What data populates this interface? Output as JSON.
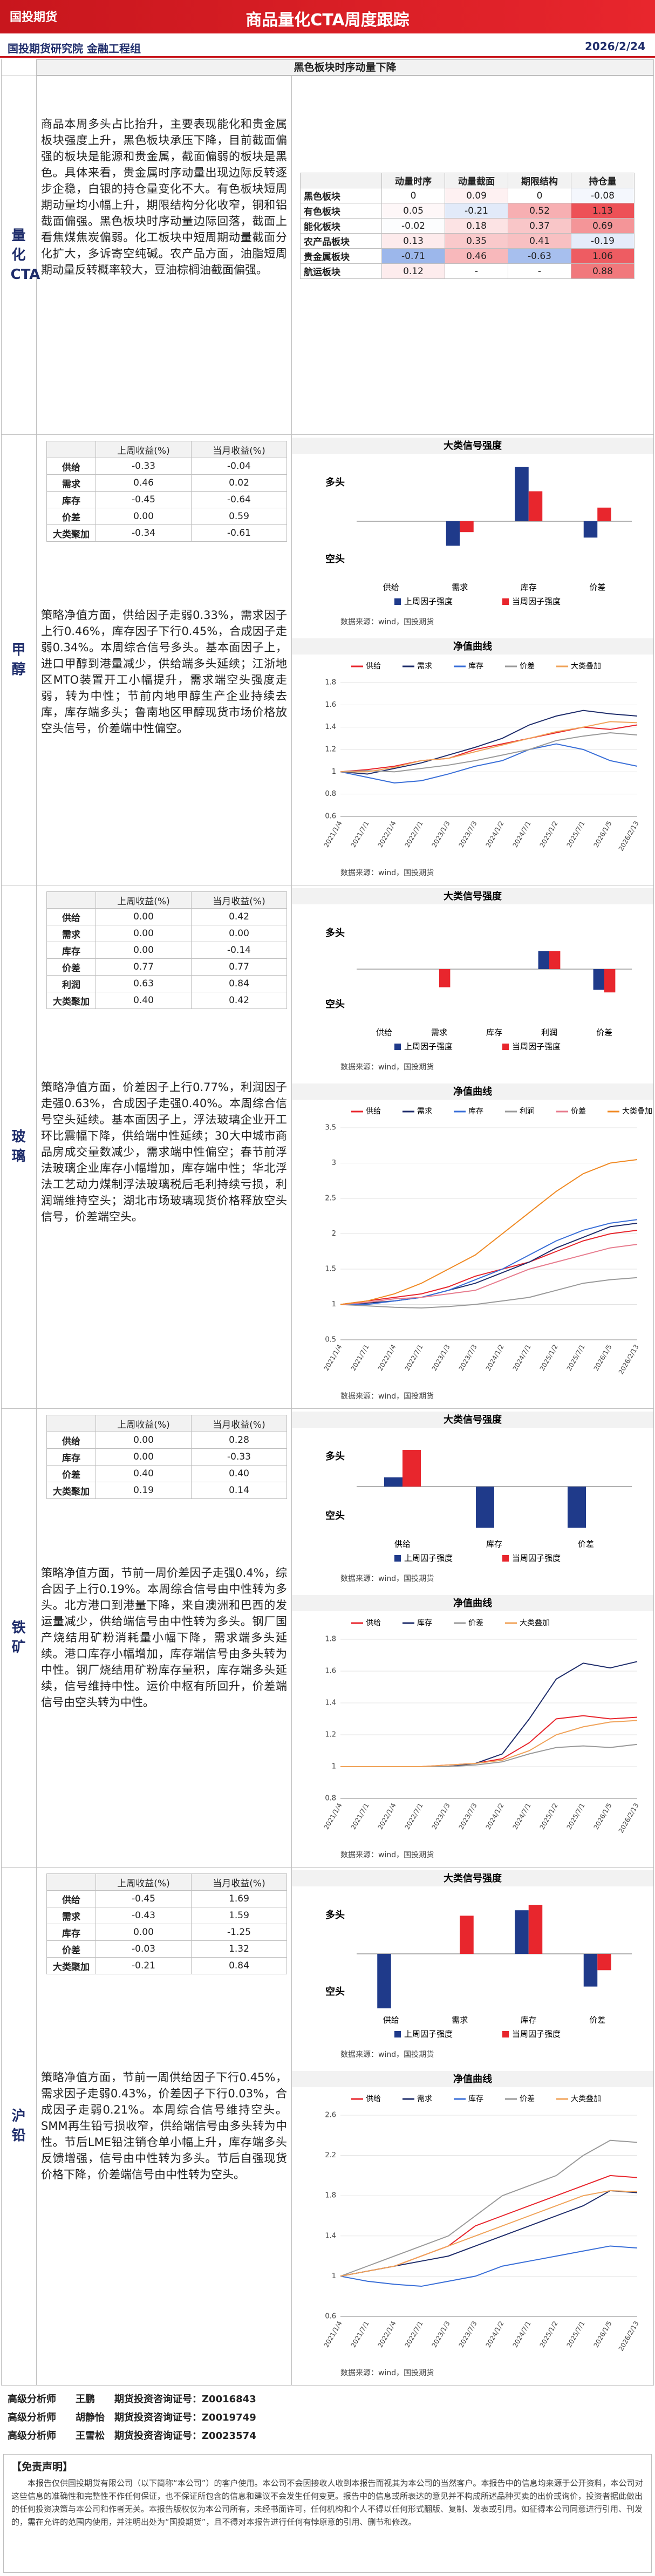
{
  "header": {
    "logo": "国投期货",
    "title": "商品量化CTA周度跟踪",
    "department": "国投期货研究院 金融工程组",
    "date": "2026/2/24"
  },
  "banner": "黑色板块时序动量下降",
  "overview": {
    "name": "量化CTA",
    "text": "商品本周多头占比抬升，主要表现能化和贵金属板块强度上升，黑色板块承压下降，目前截面偏强的板块是能源和贵金属，截面偏弱的板块是黑色。具体来看，贵金属时序动量出现边际反转逐步企稳，白银的持仓量变化不大。有色板块短周期动量均小幅上升，期限结构分化收窄，铜和铝截面偏强。黑色板块时序动量边际回落，截面上看焦煤焦炭偏弱。化工板块中短周期动量截面分化扩大，多诉寄空纯碱。农产品方面，油脂短周期动量反转概率较大，豆油棕榈油截面偏强。",
    "table": {
      "columns": [
        "动量时序",
        "动量截面",
        "期限结构",
        "持仓量"
      ],
      "rows": [
        {
          "label": "黑色板块",
          "values": [
            0,
            0.09,
            0,
            -0.08
          ]
        },
        {
          "label": "有色板块",
          "values": [
            0.05,
            -0.21,
            0.52,
            1.13
          ]
        },
        {
          "label": "能化板块",
          "values": [
            -0.02,
            0.18,
            0.37,
            0.69
          ]
        },
        {
          "label": "农产品板块",
          "values": [
            0.13,
            0.35,
            0.41,
            -0.19
          ]
        },
        {
          "label": "贵金属板块",
          "values": [
            -0.71,
            0.46,
            -0.63,
            1.06
          ]
        },
        {
          "label": "航运板块",
          "values": [
            0.12,
            "-",
            "-",
            0.88
          ]
        }
      ]
    }
  },
  "sections": [
    {
      "name": "甲醇",
      "table": {
        "columns": [
          "上周收益(%)",
          "当月收益(%)"
        ],
        "rows": [
          {
            "label": "供给",
            "values": [
              "-0.33",
              "-0.04"
            ]
          },
          {
            "label": "需求",
            "values": [
              "0.46",
              "0.02"
            ]
          },
          {
            "label": "库存",
            "values": [
              "-0.45",
              "-0.64"
            ]
          },
          {
            "label": "价差",
            "values": [
              "0.00",
              "0.59"
            ]
          },
          {
            "label": "大类聚加",
            "values": [
              "-0.34",
              "-0.61"
            ]
          }
        ]
      },
      "text": "策略净值方面，供给因子走弱0.33%，需求因子上行0.46%，库存因子下行0.45%，合成因子走弱0.34%。本周综合信号多头。基本面因子上，进口甲醇到港量减少，供给端多头延续；江浙地区MTO装置开工小幅提升，需求端空头强度走弱，转为中性；节前内地甲醇生产企业持续去库，库存端多头；鲁南地区甲醇现货市场价格放空头信号，价差端中性偏空。",
      "signal_chart": {
        "type": "bar",
        "title": "大类信号强度",
        "long_label": "多头",
        "short_label": "空头",
        "ylim": [
          -1,
          1
        ],
        "categories": [
          "供给",
          "需求",
          "库存",
          "价差"
        ],
        "series": [
          {
            "name": "上周因子强度",
            "color": "#1f3a8a",
            "values": [
              0,
              -0.45,
              1,
              -0.3
            ]
          },
          {
            "name": "当周因子强度",
            "color": "#e8262d",
            "values": [
              0,
              -0.2,
              0.55,
              0.25
            ]
          }
        ],
        "source": "数据来源：wind，国投期货"
      },
      "nav_chart": {
        "type": "line",
        "title": "净值曲线",
        "x": [
          "2021/1/4",
          "2021/7/1",
          "2022/1/4",
          "2022/7/1",
          "2023/1/3",
          "2023/7/3",
          "2024/1/2",
          "2024/7/1",
          "2025/1/2",
          "2025/7/1",
          "2026/1/5",
          "2026/2/13"
        ],
        "ylim": [
          0.6,
          1.8
        ],
        "yticks": [
          0.6,
          0.8,
          1,
          1.2,
          1.4,
          1.6,
          1.8
        ],
        "series": [
          {
            "name": "供给",
            "color": "#e8262d",
            "values": [
              1,
              1.02,
              1.05,
              1.1,
              1.12,
              1.2,
              1.25,
              1.3,
              1.35,
              1.4,
              1.38,
              1.42
            ]
          },
          {
            "name": "需求",
            "color": "#1f2d6b",
            "values": [
              1,
              0.98,
              1.03,
              1.08,
              1.15,
              1.22,
              1.3,
              1.42,
              1.5,
              1.55,
              1.52,
              1.5
            ]
          },
          {
            "name": "库存",
            "color": "#3a6fd8",
            "values": [
              1,
              0.95,
              0.9,
              0.92,
              0.98,
              1.05,
              1.1,
              1.2,
              1.25,
              1.2,
              1.1,
              1.05
            ]
          },
          {
            "name": "价差",
            "color": "#9a9a9a",
            "values": [
              1,
              1.01,
              1,
              1.03,
              1.06,
              1.1,
              1.15,
              1.2,
              1.28,
              1.32,
              1.35,
              1.33
            ]
          },
          {
            "name": "大类叠加",
            "color": "#f0a35a",
            "values": [
              1,
              1,
              1.04,
              1.1,
              1.12,
              1.18,
              1.24,
              1.3,
              1.36,
              1.4,
              1.45,
              1.44
            ]
          }
        ],
        "source": "数据来源：wind，国投期货"
      }
    },
    {
      "name": "玻璃",
      "table": {
        "columns": [
          "上周收益(%)",
          "当月收益(%)"
        ],
        "rows": [
          {
            "label": "供给",
            "values": [
              "0.00",
              "0.42"
            ]
          },
          {
            "label": "需求",
            "values": [
              "0.00",
              "0.00"
            ]
          },
          {
            "label": "库存",
            "values": [
              "0.00",
              "-0.14"
            ]
          },
          {
            "label": "价差",
            "values": [
              "0.77",
              "0.77"
            ]
          },
          {
            "label": "利润",
            "values": [
              "0.63",
              "0.84"
            ]
          },
          {
            "label": "大类聚加",
            "values": [
              "0.40",
              "0.42"
            ]
          }
        ]
      },
      "text": "策略净值方面，价差因子上行0.77%，利润因子走强0.63%，合成因子走强0.40%。本周综合信号空头延续。基本面因子上，浮法玻璃企业开工环比震幅下降，供给端中性延续；30大中城市商品房成交量数减少，需求端中性偏空；春节前浮法玻璃企业库存小幅增加，库存端中性；华北浮法工艺动力煤制浮法玻璃税后毛利持续亏损，利润端维持空头；湖北市场玻璃现货价格释放空头信号，价差端空头。",
      "signal_chart": {
        "type": "bar",
        "title": "大类信号强度",
        "long_label": "多头",
        "short_label": "空头",
        "ylim": [
          -1,
          1
        ],
        "categories": [
          "供给",
          "需求",
          "库存",
          "利润",
          "价差"
        ],
        "series": [
          {
            "name": "上周因子强度",
            "color": "#1f3a8a",
            "values": [
              0,
              0,
              0,
              0.35,
              -0.4
            ]
          },
          {
            "name": "当周因子强度",
            "color": "#e8262d",
            "values": [
              0,
              -0.35,
              0,
              0.35,
              -0.45
            ]
          }
        ],
        "source": "数据来源：wind，国投期货"
      },
      "nav_chart": {
        "type": "line",
        "title": "净值曲线",
        "x": [
          "2021/1/4",
          "2021/7/1",
          "2022/1/4",
          "2022/7/1",
          "2023/1/3",
          "2023/7/3",
          "2024/1/2",
          "2024/7/1",
          "2025/1/2",
          "2025/7/1",
          "2026/1/5",
          "2026/2/13"
        ],
        "ylim": [
          0.5,
          3.5
        ],
        "yticks": [
          0.5,
          1,
          1.5,
          2,
          2.5,
          3,
          3.5
        ],
        "series": [
          {
            "name": "供给",
            "color": "#e8262d",
            "values": [
              1,
              1.05,
              1.1,
              1.15,
              1.25,
              1.4,
              1.5,
              1.6,
              1.75,
              1.9,
              2,
              2.05
            ]
          },
          {
            "name": "需求",
            "color": "#1f2d6b",
            "values": [
              1,
              1.02,
              1.05,
              1.1,
              1.2,
              1.3,
              1.45,
              1.6,
              1.8,
              1.95,
              2.1,
              2.15
            ]
          },
          {
            "name": "库存",
            "color": "#3a6fd8",
            "values": [
              1,
              1,
              1.05,
              1.1,
              1.2,
              1.35,
              1.5,
              1.7,
              1.9,
              2.05,
              2.15,
              2.2
            ]
          },
          {
            "name": "利润",
            "color": "#9a9a9a",
            "values": [
              1,
              0.98,
              0.96,
              0.95,
              0.97,
              1,
              1.05,
              1.1,
              1.2,
              1.3,
              1.35,
              1.38
            ]
          },
          {
            "name": "价差",
            "color": "#e77c8e",
            "values": [
              1,
              1.03,
              1.08,
              1.1,
              1.15,
              1.2,
              1.35,
              1.5,
              1.6,
              1.7,
              1.8,
              1.85
            ]
          },
          {
            "name": "大类叠加",
            "color": "#f08a24",
            "values": [
              1,
              1.05,
              1.15,
              1.3,
              1.5,
              1.7,
              2,
              2.3,
              2.6,
              2.85,
              3,
              3.05
            ]
          }
        ],
        "source": "数据来源：wind，国投期货"
      }
    },
    {
      "name": "铁矿",
      "table": {
        "columns": [
          "上周收益(%)",
          "当月收益(%)"
        ],
        "rows": [
          {
            "label": "供给",
            "values": [
              "0.00",
              "0.28"
            ]
          },
          {
            "label": "库存",
            "values": [
              "0.00",
              "-0.33"
            ]
          },
          {
            "label": "价差",
            "values": [
              "0.40",
              "0.40"
            ]
          },
          {
            "label": "大类聚加",
            "values": [
              "0.19",
              "0.14"
            ]
          }
        ]
      },
      "text": "策略净值方面，节前一周价差因子走强0.4%，综合因子上行0.19%。本周综合信号由中性转为多头。北方港口到港量下降，来自澳洲和巴西的发运量减少，供给端信号由中性转为多头。钢厂国产烧结用矿粉消耗量小幅下降，需求端多头延续。港口库存小幅增加，库存端信号由多头转为中性。钢厂烧结用矿粉库存量积，库存端多头延续，信号维持中性。运价中枢有所回升，价差端信号由空头转为中性。",
      "signal_chart": {
        "type": "bar",
        "title": "大类信号强度",
        "long_label": "多头",
        "short_label": "空头",
        "ylim": [
          -1,
          1
        ],
        "categories": [
          "供给",
          "库存",
          "价差"
        ],
        "series": [
          {
            "name": "上周因子强度",
            "color": "#1f3a8a",
            "values": [
              0.2,
              -0.9,
              -0.9
            ]
          },
          {
            "name": "当周因子强度",
            "color": "#e8262d",
            "values": [
              0.8,
              0,
              0
            ]
          }
        ],
        "source": "数据来源：wind，国投期货"
      },
      "nav_chart": {
        "type": "line",
        "title": "净值曲线",
        "x": [
          "2021/1/4",
          "2021/7/1",
          "2022/1/4",
          "2022/7/1",
          "2023/1/3",
          "2023/7/3",
          "2024/1/2",
          "2024/7/1",
          "2025/1/2",
          "2025/7/1",
          "2026/1/5",
          "2026/2/13"
        ],
        "ylim": [
          0.8,
          1.8
        ],
        "yticks": [
          0.8,
          1,
          1.2,
          1.4,
          1.6,
          1.8
        ],
        "series": [
          {
            "name": "供给",
            "color": "#e8262d",
            "values": [
              1,
              1,
              1,
              1,
              1.01,
              1.02,
              1.05,
              1.15,
              1.3,
              1.32,
              1.3,
              1.31
            ]
          },
          {
            "name": "库存",
            "color": "#1f2d6b",
            "values": [
              1,
              1,
              1,
              1,
              1,
              1.02,
              1.08,
              1.3,
              1.55,
              1.65,
              1.62,
              1.66
            ]
          },
          {
            "name": "价差",
            "color": "#9a9a9a",
            "values": [
              1,
              1,
              1,
              1,
              1,
              1.01,
              1.03,
              1.08,
              1.12,
              1.13,
              1.12,
              1.14
            ]
          },
          {
            "name": "大类叠加",
            "color": "#f0a35a",
            "values": [
              1,
              1,
              1,
              1,
              1.01,
              1.02,
              1.04,
              1.1,
              1.2,
              1.25,
              1.28,
              1.29
            ]
          }
        ],
        "source": "数据来源：wind，国投期货"
      }
    },
    {
      "name": "沪铅",
      "table": {
        "columns": [
          "上周收益(%)",
          "当月收益(%)"
        ],
        "rows": [
          {
            "label": "供给",
            "values": [
              "-0.45",
              "1.69"
            ]
          },
          {
            "label": "需求",
            "values": [
              "-0.43",
              "1.59"
            ]
          },
          {
            "label": "库存",
            "values": [
              "0.00",
              "-1.25"
            ]
          },
          {
            "label": "价差",
            "values": [
              "-0.03",
              "1.32"
            ]
          },
          {
            "label": "大类聚加",
            "values": [
              "-0.21",
              "0.84"
            ]
          }
        ]
      },
      "text": "策略净值方面，节前一周供给因子下行0.45%，需求因子走弱0.43%，价差因子下行0.03%，合成因子走弱0.21%。本周综合信号维持空头。SMM再生铅亏损收窄，供给端信号由多头转为中性。节后LME铅注销仓单小幅上升，库存端多头反馈增强，信号由中性转为多头。节后自强现货价格下降，价差端信号由中性转为空头。",
      "signal_chart": {
        "type": "bar",
        "title": "大类信号强度",
        "long_label": "多头",
        "short_label": "空头",
        "ylim": [
          -1,
          1
        ],
        "categories": [
          "供给",
          "需求",
          "库存",
          "价差"
        ],
        "series": [
          {
            "name": "上周因子强度",
            "color": "#1f3a8a",
            "values": [
              -1,
              0,
              0.8,
              -0.6
            ]
          },
          {
            "name": "当周因子强度",
            "color": "#e8262d",
            "values": [
              0,
              0.7,
              0.9,
              -0.3
            ]
          }
        ],
        "source": "数据来源：wind，国投期货"
      },
      "nav_chart": {
        "type": "line",
        "title": "净值曲线",
        "x": [
          "2021/1/4",
          "2021/7/1",
          "2022/1/4",
          "2022/7/1",
          "2023/1/3",
          "2023/7/3",
          "2024/1/2",
          "2024/7/1",
          "2025/1/2",
          "2025/7/1",
          "2026/1/5",
          "2026/2/13"
        ],
        "ylim": [
          0.6,
          2.6
        ],
        "yticks": [
          0.6,
          1,
          1.4,
          1.8,
          2.2,
          2.6
        ],
        "series": [
          {
            "name": "供给",
            "color": "#e8262d",
            "values": [
              1,
              1.05,
              1.1,
              1.2,
              1.3,
              1.5,
              1.6,
              1.7,
              1.8,
              1.9,
              2,
              1.98
            ]
          },
          {
            "name": "需求",
            "color": "#1f2d6b",
            "values": [
              1,
              1.05,
              1.1,
              1.15,
              1.2,
              1.3,
              1.4,
              1.5,
              1.6,
              1.7,
              1.85,
              1.83
            ]
          },
          {
            "name": "库存",
            "color": "#3a6fd8",
            "values": [
              1,
              0.95,
              0.92,
              0.9,
              0.95,
              1,
              1.1,
              1.15,
              1.2,
              1.25,
              1.3,
              1.28
            ]
          },
          {
            "name": "价差",
            "color": "#9a9a9a",
            "values": [
              1,
              1.1,
              1.2,
              1.3,
              1.4,
              1.6,
              1.8,
              1.9,
              2,
              2.2,
              2.35,
              2.33
            ]
          },
          {
            "name": "大类叠加",
            "color": "#f0a35a",
            "values": [
              1,
              1.05,
              1.1,
              1.2,
              1.3,
              1.4,
              1.5,
              1.6,
              1.7,
              1.8,
              1.85,
              1.84
            ]
          }
        ],
        "source": "数据来源：wind，国投期货"
      }
    }
  ],
  "contacts": [
    {
      "title": "高级分析师",
      "name": "王鹏",
      "license": "期货投资咨询证号：Z0016843"
    },
    {
      "title": "高级分析师",
      "name": "胡静怡",
      "license": "期货投资咨询证号：Z0019749"
    },
    {
      "title": "高级分析师",
      "name": "王雪松",
      "license": "期货投资咨询证号：Z0023574"
    }
  ],
  "disclaimer": {
    "title": "【免责声明】",
    "text": "本报告仅供国投期货有限公司（以下简称“本公司”）的客户使用。本公司不会因接收人收到本报告而视其为本公司的当然客户。本报告中的信息均来源于公开资料，本公司对这些信息的准确性和完整性不作任何保证，也不保证所包含的信息和建议不会发生任何变更。报告中的信息或所表达的意见并不构成所述品种买卖的出价或询价，投资者据此做出的任何投资决策与本公司和作者无关。本报告版权仅为本公司所有，未经书面许可，任何机构和个人不得以任何形式翻版、复制、发表或引用。如征得本公司同意进行引用、刊发的，需在允许的范围内使用，并注明出处为“国投期货”，且不得对本报告进行任何有悖原意的引用、删节和修改。"
  }
}
